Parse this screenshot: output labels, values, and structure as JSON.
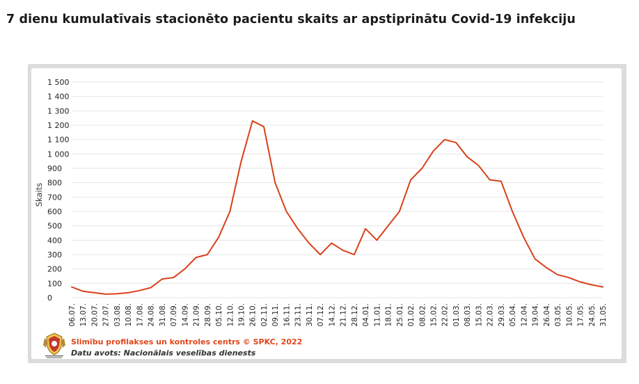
{
  "title": "7 dienu kumulatīvais stacionēto pacientu skaits ar apstiprinātu Covid-19 infekciju",
  "footer": {
    "org": "Slimību profilakses un kontroles centrs © SPKC, 2022",
    "source": "Datu avots: Nacionālais veselības dienests",
    "logo_icon": "spkc-logo-icon"
  },
  "colors": {
    "line": "#d9401a",
    "grid": "#e6e6e6",
    "footer_org": "#e0461c"
  },
  "chart_data": {
    "type": "line",
    "title": "7 dienu kumulatīvais stacionēto pacientu skaits ar apstiprinātu Covid-19 infekciju",
    "xlabel": "",
    "ylabel": "Skaits",
    "ylim": [
      0,
      1500
    ],
    "grid": true,
    "y_ticks": [
      {
        "value": 0,
        "label": "0"
      },
      {
        "value": 100,
        "label": "100"
      },
      {
        "value": 200,
        "label": "200"
      },
      {
        "value": 300,
        "label": "300"
      },
      {
        "value": 400,
        "label": "400"
      },
      {
        "value": 500,
        "label": "500"
      },
      {
        "value": 600,
        "label": "600"
      },
      {
        "value": 700,
        "label": "700"
      },
      {
        "value": 800,
        "label": "800"
      },
      {
        "value": 900,
        "label": "900"
      },
      {
        "value": 1000,
        "label": "1 000"
      },
      {
        "value": 1100,
        "label": "1 100"
      },
      {
        "value": 1200,
        "label": "1 200"
      },
      {
        "value": 1300,
        "label": "1 300"
      },
      {
        "value": 1400,
        "label": "1 400"
      },
      {
        "value": 1500,
        "label": "1 500"
      }
    ],
    "categories": [
      "06.07.",
      "13.07.",
      "20.07.",
      "27.07.",
      "03.08.",
      "10.08.",
      "17.08.",
      "24.08.",
      "31.08.",
      "07.09.",
      "14.09.",
      "21.09.",
      "28.09.",
      "05.10.",
      "12.10.",
      "19.10.",
      "26.10.",
      "02.11.",
      "09.11.",
      "16.11.",
      "23.11.",
      "30.11.",
      "07.12.",
      "14.12.",
      "21.12.",
      "28.12.",
      "04.01.",
      "11.01.",
      "18.01.",
      "25.01.",
      "01.02.",
      "08.02.",
      "15.02.",
      "22.02.",
      "01.03.",
      "08.03.",
      "15.03.",
      "22.03.",
      "29.03.",
      "05.04.",
      "12.04.",
      "19.04.",
      "26.04.",
      "03.05.",
      "10.05.",
      "17.05.",
      "24.05.",
      "31.05."
    ],
    "series": [
      {
        "values": [
          75,
          45,
          35,
          25,
          28,
          35,
          50,
          70,
          130,
          140,
          200,
          280,
          300,
          420,
          600,
          950,
          1230,
          1190,
          800,
          600,
          480,
          380,
          300,
          380,
          330,
          300,
          480,
          400,
          500,
          600,
          820,
          900,
          1020,
          1100,
          1080,
          980,
          920,
          820,
          810,
          600,
          420,
          270,
          210,
          160,
          140,
          110,
          90,
          75
        ]
      }
    ]
  }
}
